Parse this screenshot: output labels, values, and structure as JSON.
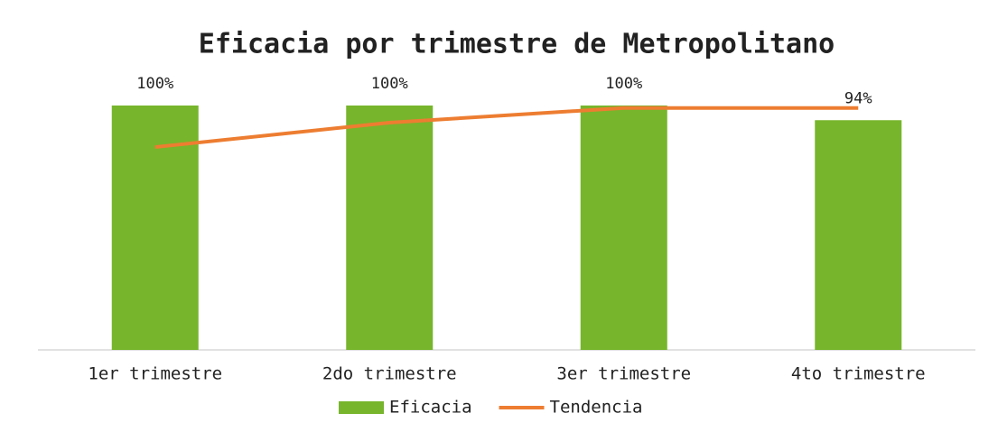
{
  "chart_data": {
    "type": "bar",
    "title": "Eficacia por trimestre de Metropolitano",
    "categories": [
      "1er trimestre",
      "2do trimestre",
      "3er trimestre",
      "4to trimestre"
    ],
    "series": [
      {
        "name": "Eficacia",
        "type": "bar",
        "color": "#77b52c",
        "values": [
          100,
          100,
          100,
          94
        ],
        "value_labels": [
          "100%",
          "100%",
          "100%",
          "94%"
        ]
      },
      {
        "name": "Tendencia",
        "type": "line",
        "color": "#ed7d31",
        "values": [
          83,
          93,
          99,
          99
        ]
      }
    ],
    "ylim": [
      0,
      100
    ],
    "legend": "bottom"
  }
}
